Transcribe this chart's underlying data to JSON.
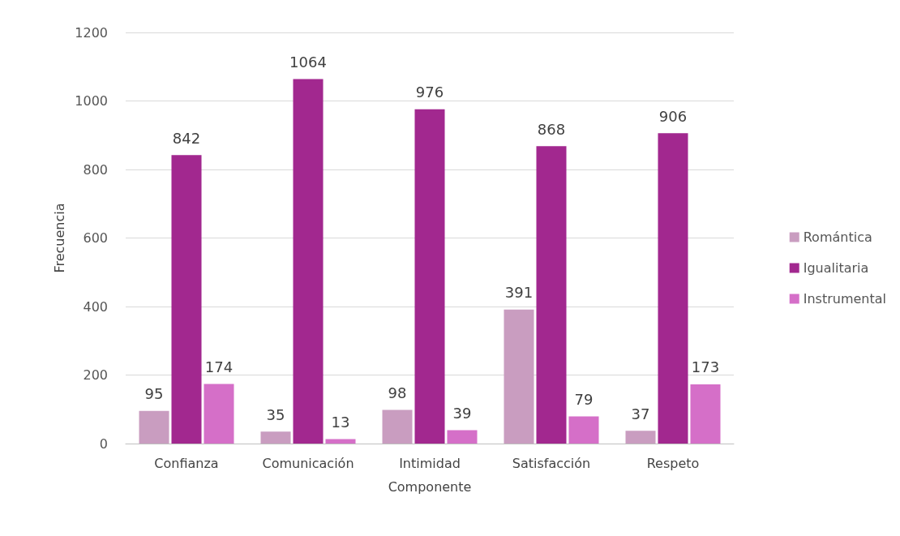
{
  "chart_data": {
    "type": "bar",
    "xlabel": "Componente",
    "ylabel": "Frecuencia",
    "categories": [
      "Confianza",
      "Comunicación",
      "Intimidad",
      "Satisfacción",
      "Respeto"
    ],
    "series": [
      {
        "name": "Romántica",
        "color": "#c99dc0",
        "values": [
          95,
          35,
          98,
          391,
          37
        ]
      },
      {
        "name": "Igualitaria",
        "color": "#a2288f",
        "values": [
          842,
          1064,
          976,
          868,
          906
        ]
      },
      {
        "name": "Instrumental",
        "color": "#d56fc8",
        "values": [
          174,
          13,
          39,
          79,
          173
        ]
      }
    ],
    "ylim": [
      0,
      1200
    ],
    "yticks": [
      0,
      200,
      400,
      600,
      800,
      1000,
      1200
    ],
    "grid": "y",
    "legend": "right",
    "data_labels": true
  }
}
